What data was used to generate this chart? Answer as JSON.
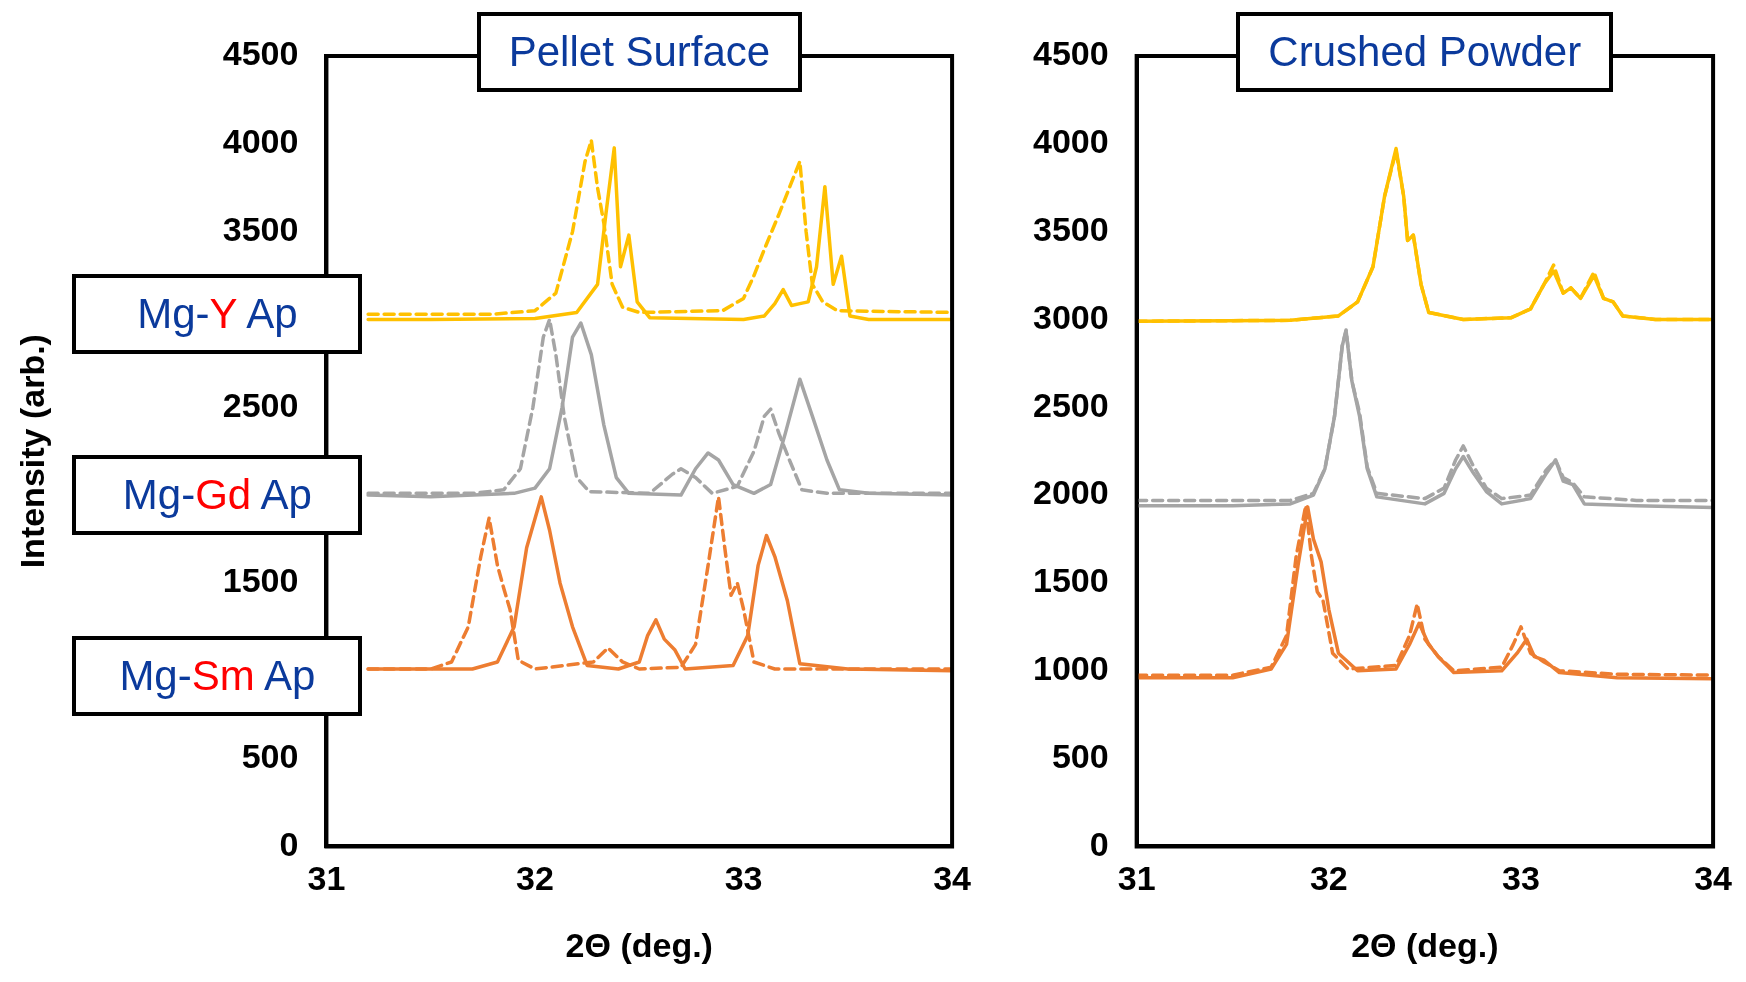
{
  "chart_data": [
    {
      "type": "line",
      "title": "Pellet Surface",
      "xlabel": "2Θ (deg.)",
      "ylabel": "Intensity (arb.)",
      "xlim": [
        31,
        34
      ],
      "xticks": [
        31,
        32,
        33,
        34
      ],
      "ylim": [
        0,
        4500
      ],
      "yticks": [
        0,
        500,
        1500,
        2500,
        3500,
        4000,
        4500
      ],
      "grid": false,
      "legend": false,
      "marker": "none",
      "annotations": [
        "Mg-Y Ap",
        "Mg-Gd Ap",
        "Mg-Sm Ap"
      ],
      "series": [
        {
          "color": "#ffc000",
          "line_style": "solid",
          "x": [
            31.2,
            31.5,
            32.0,
            32.2,
            32.3,
            32.34,
            32.38,
            32.41,
            32.45,
            32.49,
            32.55,
            33.0,
            33.1,
            33.15,
            33.19,
            33.23,
            33.27,
            33.31,
            33.35,
            33.39,
            33.43,
            33.47,
            33.51,
            33.6,
            34.0
          ],
          "values": [
            3000,
            3000,
            3005,
            3040,
            3200,
            3600,
            3977,
            3300,
            3480,
            3100,
            3010,
            3000,
            3020,
            3090,
            3170,
            3080,
            3090,
            3100,
            3300,
            3756,
            3200,
            3360,
            3020,
            3000,
            3000
          ]
        },
        {
          "color": "#ffc000",
          "line_style": "dashed",
          "x": [
            31.2,
            31.8,
            32.0,
            32.1,
            32.18,
            32.24,
            32.27,
            32.3,
            32.33,
            32.37,
            32.42,
            32.5,
            32.9,
            33.0,
            33.05,
            33.1,
            33.17,
            33.22,
            33.27,
            33.3,
            33.33,
            33.38,
            33.45,
            34.0
          ],
          "values": [
            3030,
            3030,
            3050,
            3150,
            3500,
            3900,
            4020,
            3750,
            3550,
            3200,
            3070,
            3040,
            3050,
            3120,
            3250,
            3400,
            3600,
            3750,
            3900,
            3500,
            3200,
            3100,
            3050,
            3040
          ]
        },
        {
          "color": "#a5a5a5",
          "line_style": "solid",
          "x": [
            31.2,
            31.5,
            31.9,
            32.0,
            32.07,
            32.13,
            32.18,
            32.22,
            32.27,
            32.33,
            32.39,
            32.45,
            32.7,
            32.77,
            32.83,
            32.88,
            32.95,
            33.05,
            33.13,
            33.2,
            33.27,
            33.33,
            33.4,
            33.46,
            33.6,
            34.0
          ],
          "values": [
            2000,
            1990,
            2010,
            2040,
            2150,
            2500,
            2900,
            2980,
            2800,
            2400,
            2100,
            2010,
            2000,
            2150,
            2240,
            2200,
            2060,
            2010,
            2060,
            2350,
            2660,
            2450,
            2200,
            2030,
            2010,
            2000
          ]
        },
        {
          "color": "#a5a5a5",
          "line_style": "dashed",
          "x": [
            31.2,
            31.7,
            31.85,
            31.93,
            31.99,
            32.04,
            32.07,
            32.1,
            32.14,
            32.2,
            32.26,
            32.55,
            32.66,
            32.7,
            32.77,
            32.85,
            32.97,
            33.05,
            33.1,
            33.13,
            33.17,
            33.22,
            33.28,
            33.4,
            34.0
          ],
          "values": [
            2010,
            2010,
            2030,
            2150,
            2500,
            2900,
            3000,
            2800,
            2450,
            2100,
            2020,
            2010,
            2120,
            2150,
            2100,
            2010,
            2050,
            2250,
            2450,
            2490,
            2350,
            2200,
            2030,
            2010,
            2010
          ]
        },
        {
          "color": "#ed7d31",
          "line_style": "solid",
          "x": [
            31.2,
            31.7,
            31.82,
            31.9,
            31.96,
            32.03,
            32.07,
            32.12,
            32.18,
            32.25,
            32.4,
            32.5,
            32.54,
            32.58,
            32.62,
            32.67,
            32.72,
            32.95,
            33.02,
            33.07,
            33.11,
            33.15,
            33.21,
            33.27,
            33.5,
            34.0
          ],
          "values": [
            1010,
            1010,
            1050,
            1250,
            1700,
            1990,
            1800,
            1500,
            1250,
            1030,
            1010,
            1050,
            1200,
            1290,
            1180,
            1120,
            1010,
            1030,
            1200,
            1600,
            1770,
            1650,
            1400,
            1040,
            1010,
            1000
          ]
        },
        {
          "color": "#ed7d31",
          "line_style": "dashed",
          "x": [
            31.2,
            31.5,
            31.6,
            31.68,
            31.74,
            31.78,
            31.82,
            31.85,
            31.88,
            31.92,
            32.0,
            32.28,
            32.35,
            32.42,
            32.5,
            32.7,
            32.77,
            32.83,
            32.88,
            32.91,
            32.94,
            32.97,
            33.0,
            33.05,
            33.15,
            34.0
          ],
          "values": [
            1010,
            1010,
            1050,
            1250,
            1650,
            1870,
            1600,
            1470,
            1350,
            1060,
            1010,
            1050,
            1130,
            1050,
            1010,
            1020,
            1150,
            1600,
            1990,
            1700,
            1430,
            1500,
            1350,
            1050,
            1010,
            1010
          ]
        }
      ]
    },
    {
      "type": "line",
      "title": "Crushed Powder",
      "xlabel": "2Θ (deg.)",
      "xlim": [
        31,
        34
      ],
      "xticks": [
        31,
        32,
        33,
        34
      ],
      "ylim": [
        0,
        4500
      ],
      "yticks": [
        0,
        500,
        1000,
        1500,
        2000,
        2500,
        3000,
        3500,
        4000,
        4500
      ],
      "grid": false,
      "legend": false,
      "marker": "none",
      "series": [
        {
          "color": "#ffc000",
          "line_style": "solid",
          "x": [
            31.0,
            31.8,
            32.05,
            32.15,
            32.23,
            32.29,
            32.35,
            32.39,
            32.41,
            32.44,
            32.48,
            32.52,
            32.7,
            32.95,
            33.05,
            33.12,
            33.17,
            33.22,
            33.26,
            33.31,
            33.38,
            33.43,
            33.48,
            33.53,
            33.7,
            34.0
          ],
          "values": [
            2990,
            2995,
            3020,
            3100,
            3300,
            3700,
            3973,
            3700,
            3450,
            3480,
            3200,
            3040,
            3000,
            3010,
            3060,
            3200,
            3275,
            3150,
            3180,
            3120,
            3250,
            3120,
            3100,
            3020,
            3000,
            3000
          ]
        },
        {
          "color": "#ffc000",
          "line_style": "dashed",
          "x": [
            31.0,
            31.8,
            32.05,
            32.15,
            32.23,
            32.29,
            32.35,
            32.39,
            32.41,
            32.44,
            32.48,
            32.52,
            32.7,
            32.95,
            33.05,
            33.12,
            33.17,
            33.22,
            33.26,
            33.31,
            33.38,
            33.43,
            33.48,
            33.53,
            33.7,
            34.0
          ],
          "values": [
            2990,
            2995,
            3020,
            3100,
            3300,
            3700,
            3960,
            3700,
            3450,
            3480,
            3200,
            3040,
            3000,
            3010,
            3060,
            3200,
            3310,
            3150,
            3180,
            3120,
            3270,
            3120,
            3100,
            3020,
            3000,
            3000
          ]
        },
        {
          "color": "#a5a5a5",
          "line_style": "solid",
          "x": [
            31.0,
            31.5,
            31.8,
            31.92,
            31.98,
            32.03,
            32.07,
            32.09,
            32.12,
            32.16,
            32.2,
            32.25,
            32.5,
            32.6,
            32.66,
            32.7,
            32.75,
            32.82,
            32.9,
            33.05,
            33.13,
            33.18,
            33.22,
            33.27,
            33.33,
            33.6,
            34.0
          ],
          "values": [
            1940,
            1940,
            1950,
            2000,
            2150,
            2450,
            2850,
            2934,
            2650,
            2450,
            2150,
            1990,
            1950,
            2010,
            2150,
            2220,
            2130,
            2020,
            1950,
            1980,
            2120,
            2200,
            2080,
            2060,
            1950,
            1940,
            1930
          ]
        },
        {
          "color": "#a5a5a5",
          "line_style": "dashed",
          "x": [
            31.0,
            31.8,
            31.92,
            31.98,
            32.03,
            32.07,
            32.09,
            32.12,
            32.16,
            32.2,
            32.25,
            32.5,
            32.6,
            32.66,
            32.7,
            32.75,
            32.82,
            32.9,
            33.05,
            33.13,
            33.18,
            33.22,
            33.27,
            33.33,
            33.6,
            34.0
          ],
          "values": [
            1970,
            1970,
            2010,
            2150,
            2450,
            2850,
            2940,
            2650,
            2470,
            2160,
            2010,
            1980,
            2040,
            2200,
            2280,
            2170,
            2040,
            1980,
            2000,
            2140,
            2200,
            2100,
            2070,
            1990,
            1970,
            1970
          ]
        },
        {
          "color": "#ed7d31",
          "line_style": "solid",
          "x": [
            31.0,
            31.5,
            31.7,
            31.78,
            31.84,
            31.89,
            31.92,
            31.96,
            32.0,
            32.05,
            32.15,
            32.35,
            32.42,
            32.47,
            32.52,
            32.57,
            32.65,
            32.9,
            32.98,
            33.03,
            33.07,
            33.12,
            33.2,
            33.5,
            34.0
          ],
          "values": [
            960,
            960,
            1010,
            1150,
            1600,
            1933,
            1750,
            1620,
            1350,
            1100,
            1000,
            1010,
            1150,
            1270,
            1150,
            1080,
            990,
            1000,
            1100,
            1180,
            1080,
            1060,
            990,
            960,
            955
          ]
        },
        {
          "color": "#ed7d31",
          "line_style": "dashed",
          "x": [
            31.0,
            31.5,
            31.7,
            31.78,
            31.83,
            31.88,
            31.91,
            31.94,
            31.97,
            32.02,
            32.1,
            32.35,
            32.42,
            32.46,
            32.5,
            32.57,
            32.65,
            32.9,
            32.96,
            33.0,
            33.05,
            33.12,
            33.2,
            33.5,
            34.0
          ],
          "values": [
            975,
            975,
            1020,
            1200,
            1650,
            1940,
            1650,
            1450,
            1400,
            1100,
            1010,
            1030,
            1200,
            1380,
            1180,
            1080,
            1000,
            1020,
            1150,
            1250,
            1100,
            1050,
            1000,
            980,
            975
          ]
        }
      ]
    }
  ]
}
